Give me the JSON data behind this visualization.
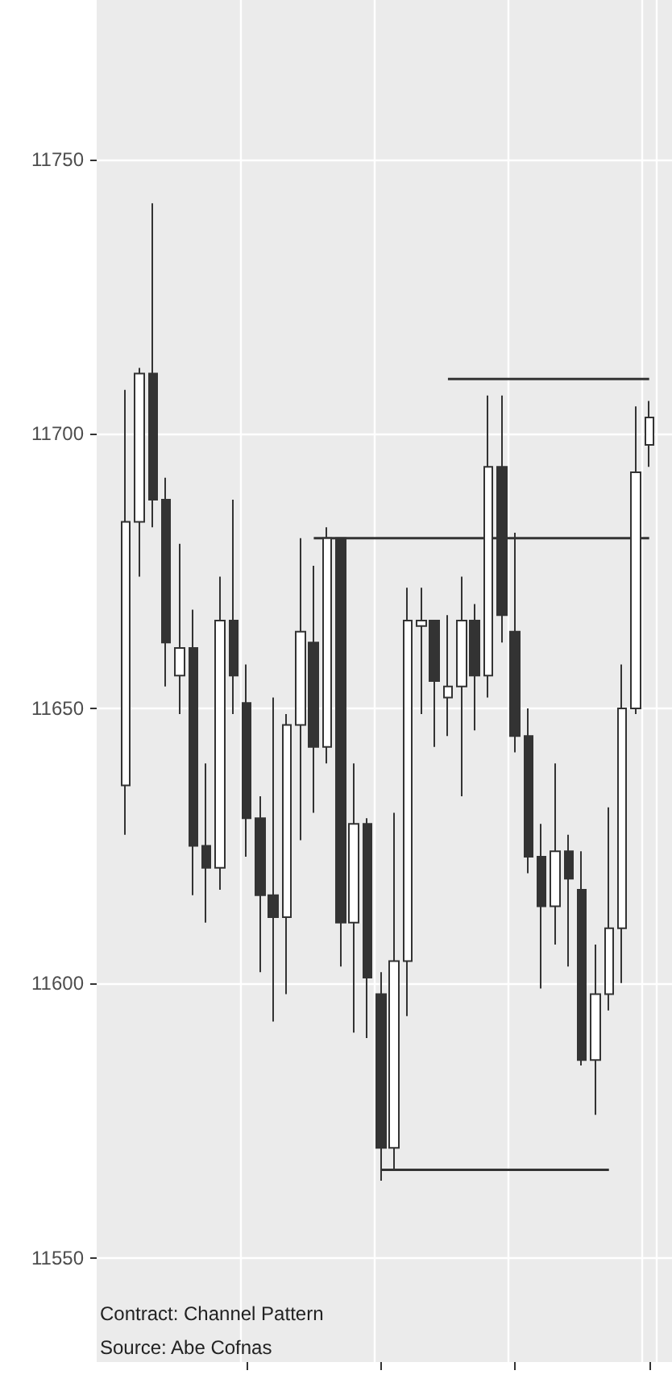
{
  "chart_data": {
    "type": "candlestick",
    "categories": [
      null,
      null,
      null,
      null,
      null,
      null,
      null,
      null,
      null,
      null,
      null,
      null,
      null,
      null,
      null,
      null,
      null,
      null,
      null,
      null,
      null,
      null,
      null,
      null,
      null,
      null,
      null,
      null,
      null,
      null,
      null,
      null,
      null,
      null,
      null,
      null,
      null,
      null,
      null,
      null
    ],
    "ohlc": [
      [
        11636,
        11708,
        11627,
        11684
      ],
      [
        11684,
        11712,
        11674,
        11711
      ],
      [
        11711,
        11742,
        11683,
        11688
      ],
      [
        11688,
        11692,
        11654,
        11662
      ],
      [
        11656,
        11680,
        11649,
        11661
      ],
      [
        11661,
        11668,
        11616,
        11625
      ],
      [
        11625,
        11640,
        11611,
        11621
      ],
      [
        11621,
        11674,
        11617,
        11666
      ],
      [
        11666,
        11688,
        11649,
        11656
      ],
      [
        11651,
        11658,
        11623,
        11630
      ],
      [
        11630,
        11634,
        11602,
        11616
      ],
      [
        11616,
        11652,
        11593,
        11612
      ],
      [
        11612,
        11649,
        11598,
        11647
      ],
      [
        11647,
        11681,
        11626,
        11664
      ],
      [
        11662,
        11676,
        11631,
        11643
      ],
      [
        11643,
        11683,
        11640,
        11681
      ],
      [
        11681,
        11681,
        11603,
        11611
      ],
      [
        11611,
        11640,
        11591,
        11629
      ],
      [
        11629,
        11630,
        11590,
        11601
      ],
      [
        11598,
        11602,
        11564,
        11570
      ],
      [
        11570,
        11631,
        11566,
        11604
      ],
      [
        11604,
        11672,
        11594,
        11666
      ],
      [
        11665,
        11672,
        11649,
        11666
      ],
      [
        11666,
        11666,
        11643,
        11655
      ],
      [
        11652,
        11667,
        11645,
        11654
      ],
      [
        11654,
        11674,
        11634,
        11666
      ],
      [
        11666,
        11669,
        11646,
        11656
      ],
      [
        11656,
        11707,
        11652,
        11694
      ],
      [
        11694,
        11707,
        11662,
        11667
      ],
      [
        11664,
        11682,
        11642,
        11645
      ],
      [
        11645,
        11650,
        11620,
        11623
      ],
      [
        11623,
        11629,
        11599,
        11614
      ],
      [
        11614,
        11640,
        11607,
        11624
      ],
      [
        11624,
        11627,
        11603,
        11619
      ],
      [
        11617,
        11624,
        11585,
        11586
      ],
      [
        11586,
        11607,
        11576,
        11598
      ],
      [
        11598,
        11632,
        11595,
        11610
      ],
      [
        11610,
        11658,
        11600,
        11650
      ],
      [
        11650,
        11705,
        11649,
        11693
      ],
      [
        11698,
        11706,
        11694,
        11703
      ]
    ],
    "series": [
      {
        "type": "line",
        "color": "#333333",
        "values": [
          null,
          null,
          null,
          null,
          null,
          null,
          null,
          null,
          null,
          null,
          null,
          null,
          null,
          null,
          11681,
          11681,
          11681,
          11681,
          11681,
          11681,
          11681,
          11681,
          11681,
          11681,
          11681,
          11681,
          11681,
          11681,
          11681,
          11681,
          11681,
          11681,
          11681,
          11681,
          11681,
          11681,
          11681,
          11681,
          11681,
          11681
        ]
      },
      {
        "type": "line",
        "color": "#333333",
        "values": [
          null,
          null,
          null,
          null,
          null,
          null,
          null,
          null,
          null,
          null,
          null,
          null,
          null,
          null,
          null,
          null,
          null,
          null,
          null,
          null,
          null,
          null,
          null,
          null,
          11710,
          11710,
          11710,
          11710,
          11710,
          11710,
          11710,
          11710,
          11710,
          11710,
          11710,
          11710,
          11710,
          11710,
          11710,
          11710
        ]
      },
      {
        "type": "line",
        "color": "#333333",
        "values": [
          null,
          null,
          null,
          null,
          null,
          null,
          null,
          null,
          null,
          null,
          null,
          null,
          null,
          null,
          null,
          null,
          null,
          null,
          null,
          11566,
          11566,
          11566,
          11566,
          11566,
          11566,
          11566,
          11566,
          11566,
          11566,
          11566,
          11566,
          11566,
          11566,
          11566,
          11566,
          11566,
          11566,
          null,
          null,
          null
        ]
      }
    ],
    "ylim": [
      11531,
      11779
    ],
    "yticks": [
      11550,
      11600,
      11650,
      11700,
      11750
    ],
    "tick_labels": "y",
    "grid": true,
    "annotations": [
      "Contract: Channel Pattern",
      "Source: Abe Cofnas"
    ]
  }
}
